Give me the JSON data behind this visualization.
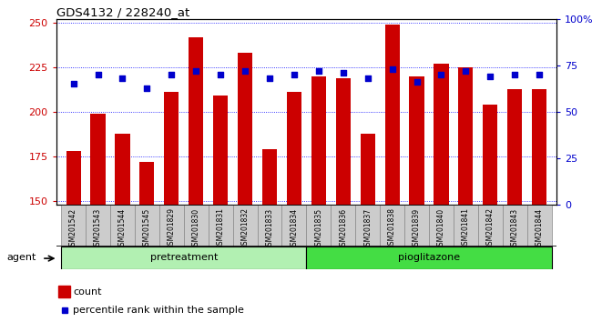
{
  "title": "GDS4132 / 228240_at",
  "samples": [
    "GSM201542",
    "GSM201543",
    "GSM201544",
    "GSM201545",
    "GSM201829",
    "GSM201830",
    "GSM201831",
    "GSM201832",
    "GSM201833",
    "GSM201834",
    "GSM201835",
    "GSM201836",
    "GSM201837",
    "GSM201838",
    "GSM201839",
    "GSM201840",
    "GSM201841",
    "GSM201842",
    "GSM201843",
    "GSM201844"
  ],
  "counts": [
    178,
    199,
    188,
    172,
    211,
    242,
    209,
    233,
    179,
    211,
    220,
    219,
    188,
    249,
    220,
    227,
    225,
    204,
    213,
    213
  ],
  "percentiles": [
    65,
    70,
    68,
    63,
    70,
    72,
    70,
    72,
    68,
    70,
    72,
    71,
    68,
    73,
    66,
    70,
    72,
    69,
    70,
    70
  ],
  "bar_color": "#cc0000",
  "dot_color": "#0000cc",
  "ylim_left": [
    148,
    252
  ],
  "ylim_right": [
    0,
    100
  ],
  "yticks_left": [
    150,
    175,
    200,
    225,
    250
  ],
  "yticks_right": [
    0,
    25,
    50,
    75,
    100
  ],
  "pretreatment_label": "pretreatment",
  "pioglitazone_label": "pioglitazone",
  "agent_label": "agent",
  "legend_count": "count",
  "legend_percentile": "percentile rank within the sample",
  "tick_bg_color": "#cccccc",
  "group_color_pre": "#b2f0b2",
  "group_color_pio": "#44dd44",
  "grid_color": "blue",
  "fig_bg": "#e8e8e8"
}
